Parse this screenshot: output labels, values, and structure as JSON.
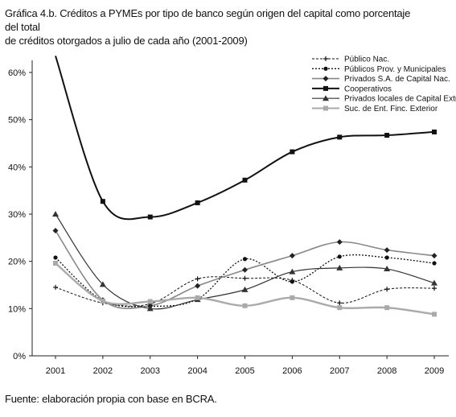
{
  "title_line1": "Gráfica 4.b. Créditos a PYMEs por tipo de banco según origen del capital como porcentaje del total",
  "title_line2": "de créditos otorgados a julio de cada año (2001-2009)",
  "source": "Fuente: elaboración propia con base en BCRA.",
  "chart_data": {
    "type": "line",
    "x": [
      "2001",
      "2002",
      "2003",
      "2004",
      "2005",
      "2006",
      "2007",
      "2008",
      "2009"
    ],
    "ylim": [
      0,
      60
    ],
    "yticks": [
      "0%",
      "10%",
      "20%",
      "30%",
      "40%",
      "50%",
      "60%"
    ],
    "grid": false,
    "legend_position": "top-right",
    "series": [
      {
        "name": "Público Nac.",
        "values": [
          14.5,
          11.2,
          11.0,
          16.3,
          16.4,
          16.0,
          11.2,
          14.1,
          14.3
        ],
        "color": "#111111"
      },
      {
        "name": "Públicos Prov. y Municipales",
        "values": [
          20.8,
          11.7,
          10.5,
          12.0,
          20.5,
          15.7,
          21.0,
          20.8,
          19.6
        ],
        "color": "#111111"
      },
      {
        "name": "Privados S.A. de Capital Nac.",
        "values": [
          26.5,
          11.8,
          10.6,
          14.8,
          18.2,
          21.2,
          24.1,
          22.4,
          21.2
        ],
        "color": "#888888"
      },
      {
        "name": "Cooperativos",
        "values": [
          63.5,
          32.7,
          29.4,
          32.4,
          37.2,
          43.2,
          46.3,
          46.7,
          47.4
        ],
        "color": "#111111"
      },
      {
        "name": "Privados locales de Capital Extr.",
        "values": [
          30.0,
          15.1,
          10.0,
          11.9,
          14.0,
          17.8,
          18.6,
          18.4,
          15.4
        ],
        "color": "#333333"
      },
      {
        "name": "Suc. de Ent. Finc. Exterior",
        "values": [
          19.6,
          11.6,
          11.5,
          12.3,
          10.6,
          12.3,
          10.2,
          10.2,
          8.8
        ],
        "color": "#aaaaaa"
      }
    ]
  }
}
